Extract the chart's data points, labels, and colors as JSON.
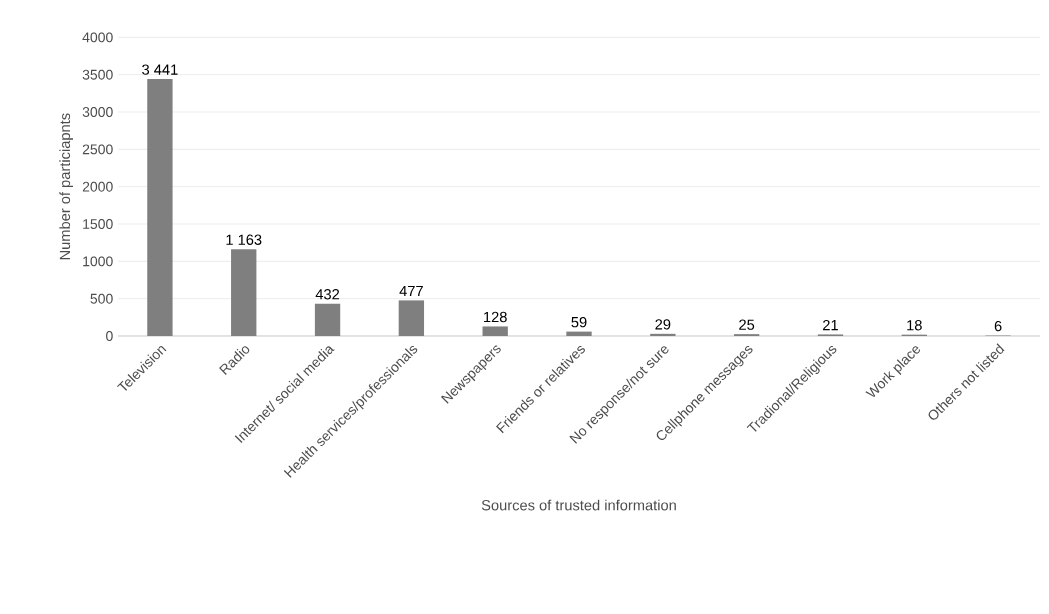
{
  "chart_data": {
    "type": "bar",
    "xlabel": "Sources of trusted information",
    "ylabel": "Number of particiapnts",
    "categories": [
      "Television",
      "Radio",
      "Internet/ social media",
      "Health services/professionals",
      "Newspapers",
      "Friends or relatives",
      "No response/not sure",
      "Cellphone messages",
      "Tradional/Religious",
      "Work place",
      "Others not listed"
    ],
    "values": [
      3441,
      1163,
      432,
      477,
      128,
      59,
      29,
      25,
      21,
      18,
      6
    ],
    "value_labels": [
      "3 441",
      "1 163",
      "432",
      "477",
      "128",
      "59",
      "29",
      "25",
      "21",
      "18",
      "6"
    ],
    "color": "#7f7f7f",
    "ylim": [
      0,
      4000
    ],
    "yticks": [
      0,
      500,
      1000,
      1500,
      2000,
      2500,
      3000,
      3500,
      4000
    ],
    "grid": "y"
  }
}
